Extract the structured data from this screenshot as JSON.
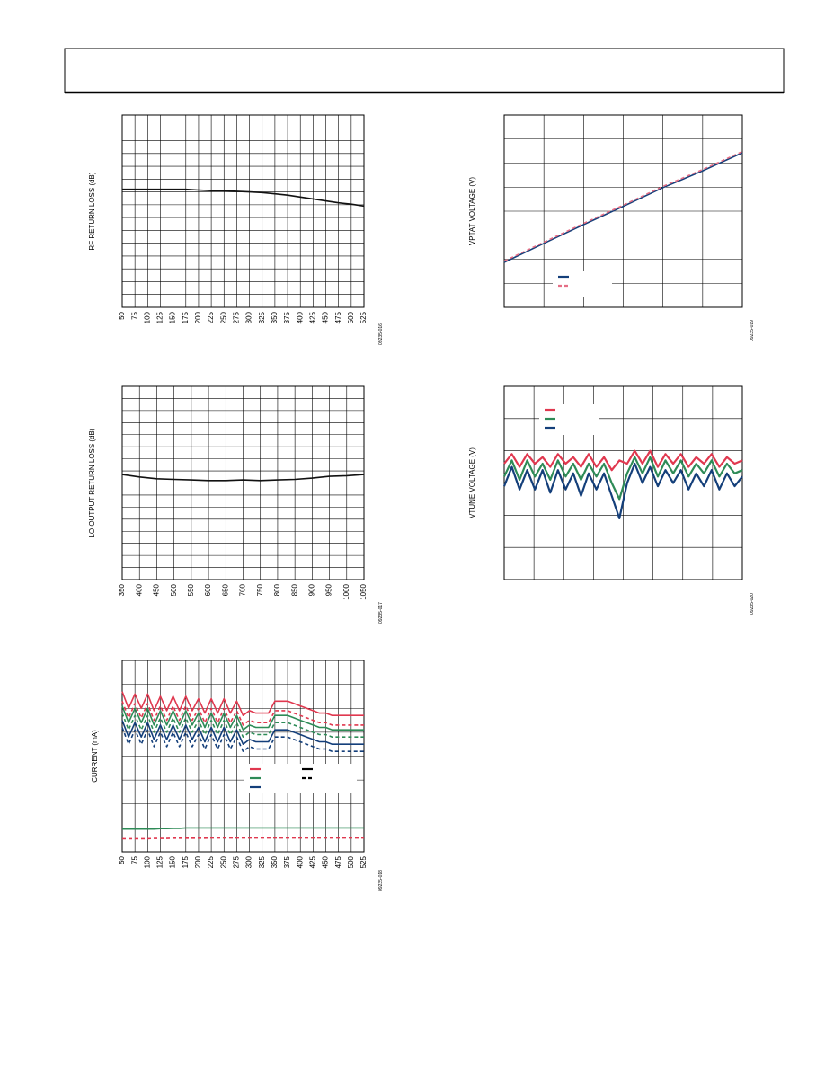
{
  "chart_data": [
    {
      "type": "line",
      "y_label": "RF RETURN LOSS (dB)",
      "figure_id": "09235-016",
      "grid": true,
      "x": [
        50,
        75,
        100,
        125,
        150,
        175,
        200,
        225,
        250,
        275,
        300,
        325,
        350,
        375,
        400,
        425,
        450,
        475,
        500,
        525
      ],
      "xlim": [
        50,
        525
      ],
      "xticks": [
        50,
        75,
        100,
        125,
        150,
        175,
        200,
        225,
        250,
        275,
        300,
        325,
        350,
        375,
        400,
        425,
        450,
        475,
        500,
        525
      ],
      "ylim": [
        0,
        15
      ],
      "series": [
        {
          "color": "#111111",
          "values": [
            9.2,
            9.2,
            9.2,
            9.2,
            9.2,
            9.2,
            9.15,
            9.1,
            9.1,
            9.05,
            9.0,
            8.95,
            8.85,
            8.75,
            8.6,
            8.45,
            8.3,
            8.15,
            8.05,
            7.9
          ]
        }
      ]
    },
    {
      "type": "line",
      "y_label": "LO OUTPUT RETURN LOSS (dB)",
      "figure_id": "09235-017",
      "grid": true,
      "x": [
        350,
        400,
        450,
        500,
        550,
        600,
        650,
        700,
        750,
        800,
        850,
        900,
        950,
        1000,
        1050
      ],
      "xlim": [
        350,
        1050
      ],
      "xticks": [
        350,
        400,
        450,
        500,
        550,
        600,
        650,
        700,
        750,
        800,
        850,
        900,
        950,
        1000,
        1050
      ],
      "ylim": [
        0,
        16
      ],
      "series": [
        {
          "color": "#111111",
          "values": [
            8.7,
            8.5,
            8.35,
            8.3,
            8.25,
            8.2,
            8.2,
            8.25,
            8.2,
            8.25,
            8.3,
            8.4,
            8.55,
            8.6,
            8.7
          ]
        }
      ]
    },
    {
      "type": "line",
      "y_label": "CURRENT (mA)",
      "figure_id": "09235-018",
      "grid": true,
      "x": [
        50,
        62.5,
        75,
        87.5,
        100,
        112.5,
        125,
        137.5,
        150,
        162.5,
        175,
        187.5,
        200,
        212.5,
        225,
        237.5,
        250,
        262.5,
        275,
        287.5,
        300,
        312.5,
        325,
        337.5,
        350,
        362.5,
        375,
        387.5,
        400,
        412.5,
        425,
        437.5,
        450,
        462.5,
        475,
        487.5,
        500,
        512.5,
        525
      ],
      "xlim": [
        50,
        525
      ],
      "xticks": [
        50,
        75,
        100,
        125,
        150,
        175,
        200,
        225,
        250,
        275,
        300,
        325,
        350,
        375,
        400,
        425,
        450,
        475,
        500,
        525
      ],
      "ylim": [
        0,
        8
      ],
      "series": [
        {
          "color": "#e0384f",
          "dashed": false,
          "values": [
            6.7,
            6.0,
            6.6,
            6.0,
            6.6,
            5.9,
            6.5,
            5.9,
            6.5,
            5.9,
            6.5,
            5.9,
            6.4,
            5.8,
            6.4,
            5.8,
            6.4,
            5.8,
            6.3,
            5.7,
            5.9,
            5.8,
            5.8,
            5.8,
            6.3,
            6.3,
            6.3,
            6.2,
            6.1,
            6.0,
            5.9,
            5.8,
            5.8,
            5.7,
            5.7,
            5.7,
            5.7,
            5.7,
            5.7
          ]
        },
        {
          "color": "#e0384f",
          "dashed": true,
          "values": [
            6.3,
            5.6,
            6.2,
            5.6,
            6.2,
            5.5,
            6.1,
            5.5,
            6.1,
            5.5,
            6.1,
            5.5,
            6.0,
            5.4,
            6.0,
            5.4,
            6.0,
            5.4,
            5.9,
            5.3,
            5.5,
            5.4,
            5.4,
            5.4,
            5.9,
            5.9,
            5.9,
            5.8,
            5.7,
            5.6,
            5.5,
            5.4,
            5.4,
            5.3,
            5.3,
            5.3,
            5.3,
            5.3,
            5.3
          ]
        },
        {
          "color": "#2e8b57",
          "dashed": false,
          "values": [
            6.1,
            5.4,
            6.0,
            5.4,
            6.0,
            5.3,
            5.9,
            5.3,
            5.9,
            5.3,
            5.9,
            5.3,
            5.8,
            5.2,
            5.8,
            5.2,
            5.8,
            5.2,
            5.7,
            5.1,
            5.3,
            5.2,
            5.2,
            5.2,
            5.7,
            5.7,
            5.7,
            5.6,
            5.5,
            5.4,
            5.3,
            5.2,
            5.2,
            5.1,
            5.1,
            5.1,
            5.1,
            5.1,
            5.1
          ]
        },
        {
          "color": "#2e8b57",
          "dashed": true,
          "values": [
            5.8,
            5.1,
            5.7,
            5.1,
            5.7,
            5.0,
            5.6,
            5.0,
            5.6,
            5.0,
            5.6,
            5.0,
            5.5,
            4.9,
            5.5,
            4.9,
            5.5,
            4.9,
            5.4,
            4.8,
            5.0,
            4.9,
            4.9,
            4.9,
            5.4,
            5.4,
            5.4,
            5.3,
            5.2,
            5.1,
            5.0,
            4.9,
            4.9,
            4.8,
            4.8,
            4.8,
            4.8,
            4.8,
            4.8
          ]
        },
        {
          "color": "#143f7a",
          "dashed": false,
          "values": [
            5.5,
            4.8,
            5.4,
            4.8,
            5.4,
            4.7,
            5.3,
            4.7,
            5.3,
            4.7,
            5.3,
            4.7,
            5.2,
            4.6,
            5.2,
            4.6,
            5.2,
            4.6,
            5.1,
            4.5,
            4.7,
            4.6,
            4.6,
            4.6,
            5.1,
            5.1,
            5.1,
            5.0,
            4.9,
            4.8,
            4.7,
            4.6,
            4.6,
            4.5,
            4.5,
            4.5,
            4.5,
            4.5,
            4.5
          ]
        },
        {
          "color": "#143f7a",
          "dashed": true,
          "values": [
            5.2,
            4.5,
            5.1,
            4.5,
            5.1,
            4.4,
            5.0,
            4.4,
            5.0,
            4.4,
            5.0,
            4.4,
            4.9,
            4.3,
            4.9,
            4.3,
            4.9,
            4.3,
            4.8,
            4.2,
            4.4,
            4.3,
            4.3,
            4.3,
            4.8,
            4.8,
            4.8,
            4.7,
            4.6,
            4.5,
            4.4,
            4.3,
            4.3,
            4.2,
            4.2,
            4.2,
            4.2,
            4.2,
            4.2
          ]
        },
        {
          "color": "#2e8b57",
          "dashed": false,
          "values": [
            0.95,
            0.95,
            0.95,
            0.95,
            0.95,
            0.95,
            0.97,
            0.97,
            0.98,
            0.98,
            1.0,
            1.0,
            1.0,
            1.0,
            1.0,
            1.0,
            1.0,
            1.0,
            1.0,
            1.0,
            1.0,
            1.0,
            1.0,
            1.0,
            1.0,
            1.0,
            1.0,
            1.0,
            1.0,
            1.0,
            1.0,
            1.0,
            1.0,
            1.0,
            1.0,
            1.0,
            1.0,
            1.0,
            1.0
          ]
        },
        {
          "color": "#e0384f",
          "dashed": true,
          "values": [
            0.55,
            0.55,
            0.55,
            0.55,
            0.55,
            0.56,
            0.56,
            0.56,
            0.57,
            0.57,
            0.57,
            0.57,
            0.57,
            0.57,
            0.58,
            0.58,
            0.58,
            0.58,
            0.58,
            0.58,
            0.58,
            0.58,
            0.58,
            0.58,
            0.58,
            0.58,
            0.58,
            0.58,
            0.58,
            0.58,
            0.58,
            0.58,
            0.58,
            0.58,
            0.58,
            0.58,
            0.58,
            0.58,
            0.58
          ]
        }
      ]
    },
    {
      "type": "line",
      "y_label": "VPTAT VOLTAGE (V)",
      "figure_id": "09235-019",
      "grid": true,
      "x": [
        0,
        1,
        2,
        3,
        4,
        5,
        6
      ],
      "xlim": [
        0,
        6
      ],
      "ylim": [
        0,
        8
      ],
      "series": [
        {
          "color": "#143f7a",
          "dashed": false,
          "values": [
            1.87,
            2.66,
            3.44,
            4.2,
            4.98,
            5.68,
            6.43
          ]
        },
        {
          "color": "#e56f86",
          "dashed": true,
          "values": [
            1.92,
            2.71,
            3.49,
            4.25,
            5.03,
            5.73,
            6.48
          ]
        }
      ]
    },
    {
      "type": "line",
      "y_label": "VTUNE VOLTAGE (V)",
      "figure_id": "09235-020",
      "grid": true,
      "x": [
        0,
        1,
        2,
        3,
        4,
        5,
        6,
        7,
        8,
        9,
        10,
        11,
        12,
        13,
        14,
        15,
        16,
        17,
        18,
        19,
        20,
        21,
        22,
        23,
        24,
        25,
        26,
        27,
        28,
        29,
        30,
        31
      ],
      "xlim": [
        0,
        31
      ],
      "ylim": [
        0,
        6
      ],
      "series": [
        {
          "color": "#e0384f",
          "dashed": false,
          "values": [
            3.6,
            3.9,
            3.5,
            3.9,
            3.6,
            3.8,
            3.5,
            3.9,
            3.6,
            3.8,
            3.5,
            3.9,
            3.5,
            3.8,
            3.4,
            3.7,
            3.6,
            4.0,
            3.6,
            4.0,
            3.5,
            3.9,
            3.6,
            3.9,
            3.5,
            3.8,
            3.6,
            3.9,
            3.5,
            3.8,
            3.6,
            3.7
          ]
        },
        {
          "color": "#2e8b57",
          "dashed": false,
          "values": [
            3.2,
            3.7,
            3.1,
            3.7,
            3.2,
            3.6,
            3.1,
            3.7,
            3.2,
            3.6,
            3.1,
            3.6,
            3.2,
            3.6,
            3.0,
            2.5,
            3.3,
            3.8,
            3.3,
            3.8,
            3.2,
            3.7,
            3.3,
            3.7,
            3.2,
            3.6,
            3.3,
            3.7,
            3.2,
            3.6,
            3.3,
            3.4
          ]
        },
        {
          "color": "#143f7a",
          "dashed": false,
          "values": [
            2.9,
            3.5,
            2.8,
            3.4,
            2.8,
            3.4,
            2.7,
            3.4,
            2.8,
            3.3,
            2.6,
            3.3,
            2.8,
            3.3,
            2.6,
            1.9,
            3.0,
            3.6,
            3.0,
            3.5,
            2.9,
            3.4,
            3.0,
            3.4,
            2.8,
            3.3,
            2.9,
            3.4,
            2.8,
            3.3,
            2.9,
            3.2
          ]
        }
      ]
    }
  ]
}
